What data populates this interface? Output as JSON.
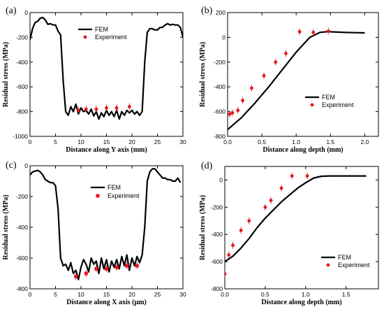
{
  "chart_data": [
    {
      "type": "line",
      "panel_label": "(a)",
      "xlabel": "Distance along Y axis (mm)",
      "ylabel": "Residual stress (MPa)",
      "xlim": [
        0,
        30
      ],
      "ylim": [
        -1000,
        0
      ],
      "xticks": [
        0,
        5,
        10,
        15,
        20,
        25,
        30
      ],
      "yticks": [
        0,
        -200,
        -400,
        -600,
        -800,
        -1000
      ],
      "legend": {
        "position": "top-center",
        "entries": [
          {
            "name": "FEM",
            "kind": "line"
          },
          {
            "name": "Experiment",
            "kind": "dot"
          }
        ]
      },
      "series": [
        {
          "name": "FEM",
          "style": "line",
          "color": "#000000",
          "x": [
            0,
            0.5,
            1,
            1.5,
            2,
            2.5,
            3,
            3.5,
            4,
            4.5,
            5,
            5.5,
            6,
            6.5,
            7,
            7.5,
            8,
            8.5,
            9,
            9.5,
            10,
            10.5,
            11,
            11.5,
            12,
            12.5,
            13,
            13.5,
            14,
            14.5,
            15,
            15.5,
            16,
            16.5,
            17,
            17.5,
            18,
            18.5,
            19,
            19.5,
            20,
            20.5,
            21,
            21.5,
            22,
            22.5,
            23,
            23.5,
            24,
            24.5,
            25,
            25.5,
            26,
            26.5,
            27,
            27.5,
            28,
            28.5,
            29,
            29.5,
            30
          ],
          "y": [
            -220,
            -130,
            -80,
            -70,
            -45,
            -40,
            -60,
            -95,
            -90,
            -100,
            -100,
            -150,
            -180,
            -550,
            -800,
            -830,
            -760,
            -800,
            -740,
            -820,
            -770,
            -800,
            -790,
            -820,
            -780,
            -835,
            -800,
            -860,
            -810,
            -840,
            -790,
            -830,
            -800,
            -840,
            -790,
            -860,
            -800,
            -830,
            -790,
            -810,
            -790,
            -820,
            -800,
            -830,
            -800,
            -400,
            -160,
            -130,
            -130,
            -140,
            -140,
            -120,
            -120,
            -100,
            -90,
            -100,
            -95,
            -100,
            -100,
            -120,
            -200
          ]
        },
        {
          "name": "Experiment",
          "style": "points",
          "color": "#e8141e",
          "x": [
            9.5,
            11,
            13,
            15,
            17,
            19.5
          ],
          "y": [
            -790,
            -780,
            -780,
            -770,
            -770,
            -760
          ]
        }
      ]
    },
    {
      "type": "line",
      "panel_label": "(b)",
      "xlabel": "Distance along depth (mm)",
      "ylabel": "Residual stress (MPa)",
      "xlim": [
        0,
        2.2
      ],
      "ylim": [
        -800,
        200
      ],
      "xticks": [
        0.0,
        0.5,
        1.0,
        1.5,
        2.0
      ],
      "yticks": [
        200,
        0,
        -200,
        -400,
        -600,
        -800
      ],
      "legend": {
        "position": "center-right",
        "entries": [
          {
            "name": "FEM",
            "kind": "line"
          },
          {
            "name": "Experiment",
            "kind": "dot"
          }
        ]
      },
      "series": [
        {
          "name": "FEM",
          "style": "line",
          "color": "#000000",
          "x": [
            0,
            0.2,
            0.4,
            0.6,
            0.8,
            1.0,
            1.2,
            1.35,
            1.45,
            1.55,
            1.7,
            1.85,
            2.0
          ],
          "y": [
            -745,
            -650,
            -530,
            -400,
            -260,
            -120,
            0,
            40,
            46,
            44,
            40,
            38,
            36
          ]
        },
        {
          "name": "Experiment",
          "style": "points",
          "color": "#e8141e",
          "x": [
            0.03,
            0.07,
            0.15,
            0.22,
            0.35,
            0.53,
            0.7,
            0.85,
            1.05,
            1.25,
            1.47
          ],
          "y": [
            -620,
            -610,
            -590,
            -510,
            -410,
            -310,
            -200,
            -130,
            45,
            40,
            50
          ]
        }
      ]
    },
    {
      "type": "line",
      "panel_label": "(c)",
      "xlabel": "Distance along X axis (μm)",
      "ylabel": "Residual stress (MPa)",
      "xlim": [
        0,
        30
      ],
      "ylim": [
        -800,
        0
      ],
      "xticks": [
        0,
        5,
        10,
        15,
        20,
        25,
        30
      ],
      "yticks": [
        0,
        -200,
        -400,
        -600,
        -800
      ],
      "legend": {
        "position": "top-center",
        "entries": [
          {
            "name": "FEM",
            "kind": "line"
          },
          {
            "name": "Experiment",
            "kind": "square"
          }
        ]
      },
      "series": [
        {
          "name": "FEM",
          "style": "line",
          "color": "#000000",
          "x": [
            0,
            0.5,
            1,
            1.5,
            2,
            2.5,
            3,
            3.5,
            4,
            4.5,
            5,
            5.5,
            6,
            6.5,
            7,
            7.5,
            8,
            8.5,
            9,
            9.5,
            10,
            10.5,
            11,
            11.5,
            12,
            12.5,
            13,
            13.5,
            14,
            14.5,
            15,
            15.5,
            16,
            16.5,
            17,
            17.5,
            18,
            18.5,
            19,
            19.5,
            20,
            20.5,
            21,
            21.5,
            22,
            22.5,
            23,
            23.5,
            24,
            24.5,
            25,
            25.5,
            26,
            26.5,
            27,
            27.5,
            28,
            28.5,
            29,
            29.5
          ],
          "y": [
            -60,
            -40,
            -35,
            -30,
            -40,
            -60,
            -90,
            -100,
            -110,
            -110,
            -130,
            -280,
            -600,
            -650,
            -640,
            -680,
            -630,
            -700,
            -680,
            -740,
            -660,
            -610,
            -640,
            -690,
            -600,
            -640,
            -620,
            -700,
            -600,
            -670,
            -610,
            -690,
            -620,
            -660,
            -610,
            -670,
            -590,
            -650,
            -580,
            -680,
            -600,
            -650,
            -590,
            -630,
            -580,
            -400,
            -100,
            -40,
            -20,
            -20,
            -40,
            -60,
            -80,
            -80,
            -90,
            -90,
            -100,
            -100,
            -80,
            -110
          ]
        },
        {
          "name": "Experiment",
          "style": "points",
          "color": "#e8141e",
          "x": [
            9,
            11,
            13,
            15,
            17,
            19,
            21
          ],
          "y": [
            -720,
            -700,
            -670,
            -670,
            -660,
            -650,
            -650
          ]
        }
      ]
    },
    {
      "type": "line",
      "panel_label": "(d)",
      "xlabel": "Distance along depth (mm)",
      "ylabel": "Residual stress (MPa)",
      "xlim": [
        0,
        1.9
      ],
      "ylim": [
        -800,
        100
      ],
      "xticks": [
        0.0,
        0.5,
        1.0,
        1.5
      ],
      "yticks": [
        0,
        -200,
        -400,
        -600,
        -800
      ],
      "legend": {
        "position": "bottom-right",
        "entries": [
          {
            "name": "FEM",
            "kind": "line"
          },
          {
            "name": "Experiment",
            "kind": "dot"
          }
        ]
      },
      "series": [
        {
          "name": "FEM",
          "style": "line",
          "color": "#000000",
          "x": [
            0,
            0.1,
            0.2,
            0.3,
            0.4,
            0.5,
            0.6,
            0.7,
            0.8,
            0.9,
            1.0,
            1.1,
            1.2,
            1.3,
            1.5,
            1.75
          ],
          "y": [
            -600,
            -560,
            -500,
            -430,
            -350,
            -280,
            -220,
            -160,
            -110,
            -60,
            -20,
            15,
            28,
            30,
            30,
            30
          ]
        },
        {
          "name": "Experiment",
          "style": "points",
          "color": "#e8141e",
          "x": [
            0.0,
            0.05,
            0.1,
            0.2,
            0.3,
            0.5,
            0.57,
            0.7,
            0.83,
            1.02
          ],
          "y": [
            -690,
            -550,
            -480,
            -370,
            -300,
            -200,
            -150,
            -60,
            30,
            30
          ]
        }
      ]
    }
  ]
}
